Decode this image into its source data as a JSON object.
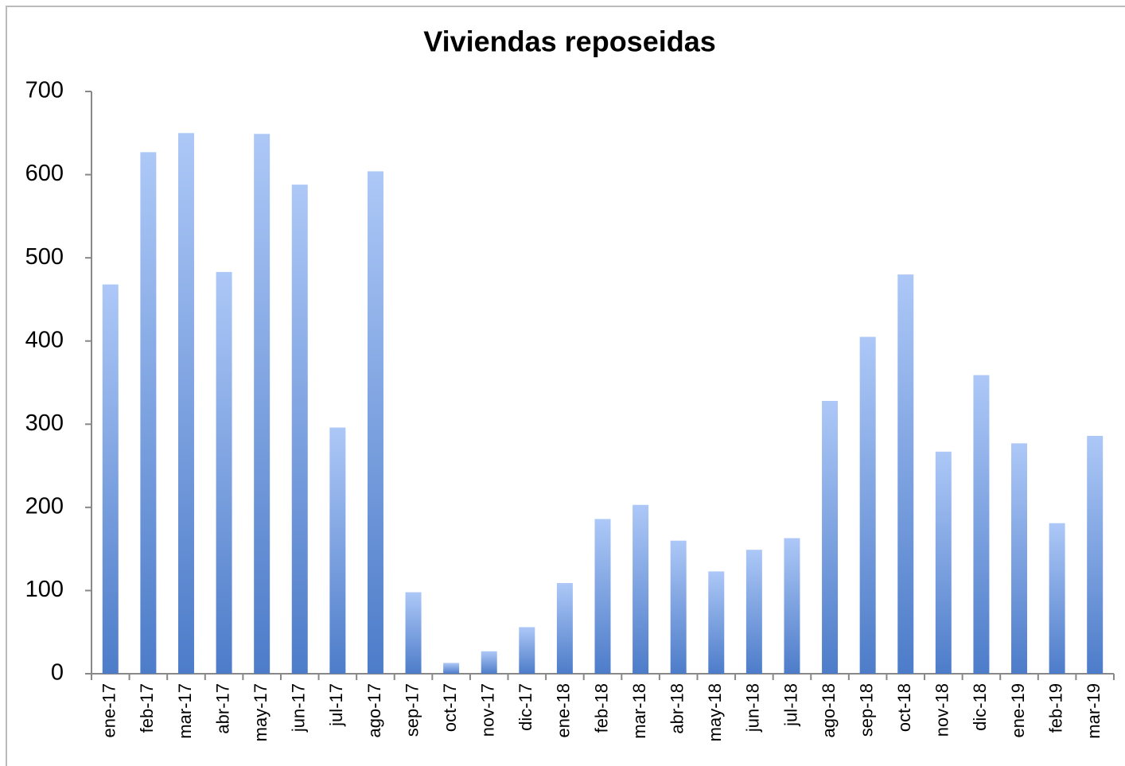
{
  "chart_data": {
    "type": "bar",
    "title": "Viviendas reposeidas",
    "categories": [
      "ene-17",
      "feb-17",
      "mar-17",
      "abr-17",
      "may-17",
      "jun-17",
      "jul-17",
      "ago-17",
      "sep-17",
      "oct-17",
      "nov-17",
      "dic-17",
      "ene-18",
      "feb-18",
      "mar-18",
      "abr-18",
      "may-18",
      "jun-18",
      "jul-18",
      "ago-18",
      "sep-18",
      "oct-18",
      "nov-18",
      "dic-18",
      "ene-19",
      "feb-19",
      "mar-19"
    ],
    "values": [
      468,
      627,
      650,
      483,
      649,
      588,
      296,
      604,
      98,
      13,
      27,
      56,
      109,
      186,
      203,
      160,
      123,
      149,
      163,
      328,
      405,
      480,
      267,
      359,
      277,
      181,
      286
    ],
    "color": "#7fa3e6",
    "ylim": [
      0,
      700
    ],
    "yticks": [
      0,
      100,
      200,
      300,
      400,
      500,
      600,
      700
    ],
    "grid": false
  }
}
